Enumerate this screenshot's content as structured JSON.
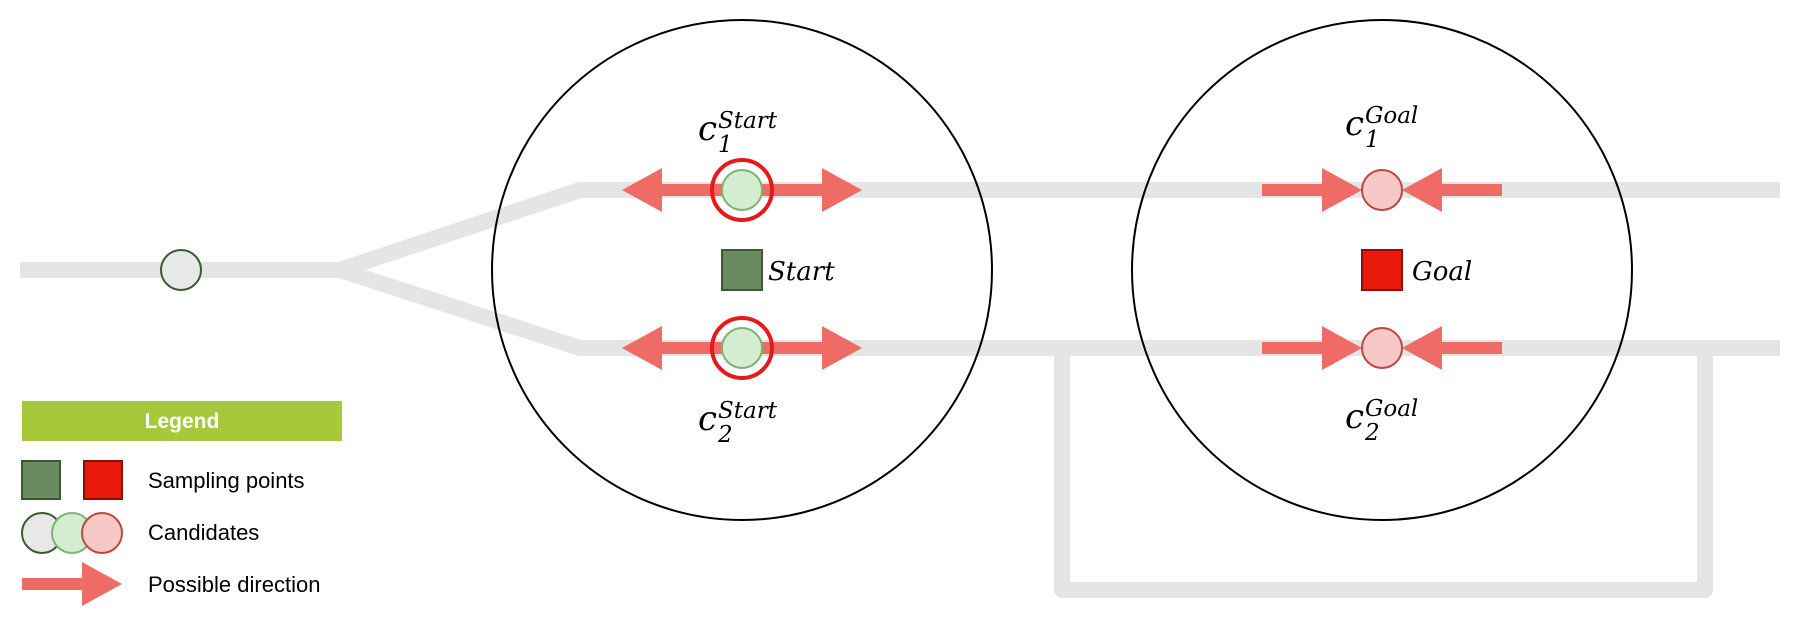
{
  "legend": {
    "title": "Legend",
    "sampling_points": "Sampling points",
    "candidates": "Candidates",
    "possible_direction": "Possible direction"
  },
  "start_label": "Start",
  "goal_label": "Goal",
  "candidate_labels": {
    "start_1": {
      "base": "c",
      "sup": "Start",
      "sub": "1"
    },
    "start_2": {
      "base": "c",
      "sup": "Start",
      "sub": "2"
    },
    "goal_1": {
      "base": "c",
      "sup": "Goal",
      "sub": "1"
    },
    "goal_2": {
      "base": "c",
      "sup": "Goal",
      "sub": "2"
    }
  },
  "colors": {
    "track": "#e5e5e5",
    "arrow": "#ee6b66",
    "start_square": "#6a8a5f",
    "goal_square": "#e8190b",
    "green_candidate": "#d4ecd0",
    "red_candidate": "#f6c9c7",
    "gray_candidate": "#e8e8e8",
    "selected_ring": "#e31b1b",
    "legend_bar": "#a5c93b"
  }
}
